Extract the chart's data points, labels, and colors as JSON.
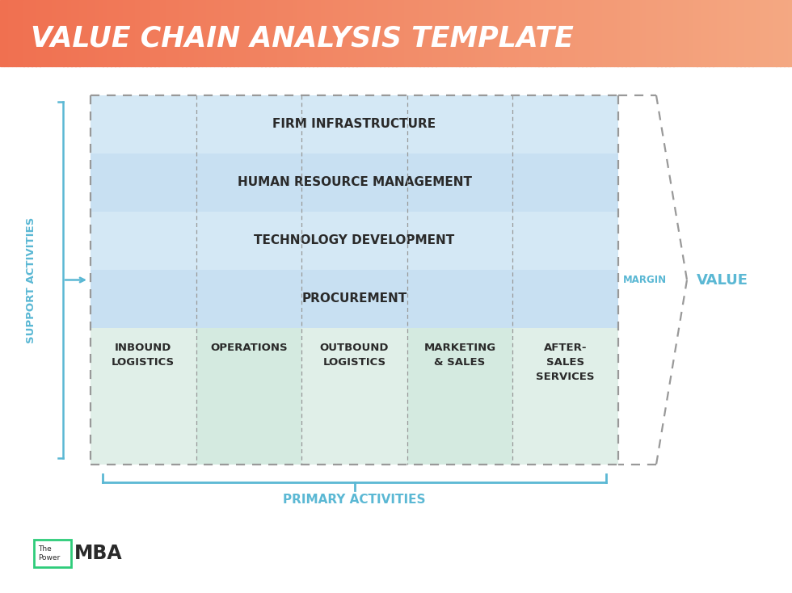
{
  "title": "VALUE CHAIN ANALYSIS TEMPLATE",
  "title_color": "#FFFFFF",
  "header_bg_start": "#F07050",
  "header_bg_end": "#F4A882",
  "bg_color": "#FFFFFF",
  "support_activities": [
    "FIRM INFRASTRUCTURE",
    "HUMAN RESOURCE MANAGEMENT",
    "TECHNOLOGY DEVELOPMENT",
    "PROCUREMENT"
  ],
  "primary_activities": [
    "INBOUND\nLOGISTICS",
    "OPERATIONS",
    "OUTBOUND\nLOGISTICS",
    "MARKETING\n& SALES",
    "AFTER-\nSALES\nSERVICES"
  ],
  "support_row_colors": [
    "#D4E8F5",
    "#C8E0F2",
    "#D4E8F5",
    "#C8E0F2"
  ],
  "primary_col_colors": [
    "#E0EFE8",
    "#D4EAE0",
    "#E0EFE8",
    "#D4EAE0",
    "#E0EFE8"
  ],
  "label_support": "SUPPORT ACTIVITIES",
  "label_primary": "PRIMARY ACTIVITIES",
  "label_margin": "MARGIN",
  "label_value": "VALUE",
  "accent_color": "#5BB8D4",
  "text_color": "#2A2A2A",
  "dashed_color": "#999999",
  "green_accent": "#2ECC7A",
  "logo_text_small1": "The",
  "logo_text_small2": "Power",
  "logo_text_large": "MBA"
}
